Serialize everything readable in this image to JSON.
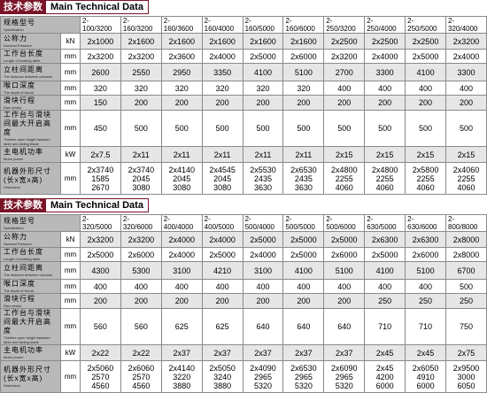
{
  "section1": {
    "title_cn": "技术参数",
    "title_en": "Main Technical Data",
    "rows": [
      {
        "cn": "规格型号",
        "en": "Specification",
        "unit": "",
        "values": [
          [
            "2-",
            "100/3200"
          ],
          [
            "2-",
            "160/3200"
          ],
          [
            "2-",
            "160/3600"
          ],
          [
            "2-",
            "160/4000"
          ],
          [
            "2-",
            "160/5000"
          ],
          [
            "2-",
            "160/6000"
          ],
          [
            "2-",
            "250/3200"
          ],
          [
            "2-",
            "250/4000"
          ],
          [
            "2-",
            "250/5000"
          ],
          [
            "2-",
            "320/4000"
          ]
        ]
      },
      {
        "cn": "公称力",
        "en": "Nominal Pressure",
        "unit": "kN",
        "values": [
          [
            "2x1000"
          ],
          [
            "2x1600"
          ],
          [
            "2x1600"
          ],
          [
            "2x1600"
          ],
          [
            "2x1600"
          ],
          [
            "2x1600"
          ],
          [
            "2x2500"
          ],
          [
            "2x2500"
          ],
          [
            "2x2500"
          ],
          [
            "2x3200"
          ]
        ]
      },
      {
        "cn": "工作台长度",
        "en": "Length of working table",
        "unit": "mm",
        "values": [
          [
            "2x3200"
          ],
          [
            "2x3200"
          ],
          [
            "2x3600"
          ],
          [
            "2x4000"
          ],
          [
            "2x5000"
          ],
          [
            "2x6000"
          ],
          [
            "2x3200"
          ],
          [
            "2x4000"
          ],
          [
            "2x5000"
          ],
          [
            "2x4000"
          ]
        ]
      },
      {
        "cn": "立柱间距离",
        "en": "The distance between columns",
        "unit": "mm",
        "values": [
          [
            "2600"
          ],
          [
            "2550"
          ],
          [
            "2950"
          ],
          [
            "3350"
          ],
          [
            "4100"
          ],
          [
            "5100"
          ],
          [
            "2700"
          ],
          [
            "3300"
          ],
          [
            "4100"
          ],
          [
            "3300"
          ]
        ]
      },
      {
        "cn": "喉口深度",
        "en": "The depth of throat",
        "unit": "mm",
        "values": [
          [
            "320"
          ],
          [
            "320"
          ],
          [
            "320"
          ],
          [
            "320"
          ],
          [
            "320"
          ],
          [
            "320"
          ],
          [
            "400"
          ],
          [
            "400"
          ],
          [
            "400"
          ],
          [
            "400"
          ]
        ]
      },
      {
        "cn": "滑块行程",
        "en": "Ram stroke",
        "unit": "mm",
        "values": [
          [
            "150"
          ],
          [
            "200"
          ],
          [
            "200"
          ],
          [
            "200"
          ],
          [
            "200"
          ],
          [
            "200"
          ],
          [
            "200"
          ],
          [
            "200"
          ],
          [
            "200"
          ],
          [
            "200"
          ]
        ]
      },
      {
        "cn": "工作台与滑块间最大开启高度",
        "en": "Thebtes open height between table and sliding blade",
        "unit": "mm",
        "values": [
          [
            "450"
          ],
          [
            "500"
          ],
          [
            "500"
          ],
          [
            "500"
          ],
          [
            "500"
          ],
          [
            "500"
          ],
          [
            "500"
          ],
          [
            "500"
          ],
          [
            "500"
          ],
          [
            "500"
          ]
        ]
      },
      {
        "cn": "主电机功率",
        "en": "Motor power",
        "unit": "kW",
        "values": [
          [
            "2x7.5"
          ],
          [
            "2x11"
          ],
          [
            "2x11"
          ],
          [
            "2x11"
          ],
          [
            "2x11"
          ],
          [
            "2x11"
          ],
          [
            "2x15"
          ],
          [
            "2x15"
          ],
          [
            "2x15"
          ],
          [
            "2x15"
          ]
        ]
      },
      {
        "cn": "机器外形尺寸(长x宽x高)",
        "en": "Dimension",
        "unit": "mm",
        "values": [
          [
            "2x3740",
            "1585",
            "2670"
          ],
          [
            "2x3740",
            "2045",
            "3080"
          ],
          [
            "2x4140",
            "2045",
            "3080"
          ],
          [
            "2x4545",
            "2045",
            "3080"
          ],
          [
            "2x5530",
            "2435",
            "3630"
          ],
          [
            "2x6530",
            "2435",
            "3630"
          ],
          [
            "2x4800",
            "2255",
            "4060"
          ],
          [
            "2x4800",
            "2255",
            "4060"
          ],
          [
            "2x5800",
            "2255",
            "4060"
          ],
          [
            "2x4060",
            "2255",
            "4060"
          ]
        ]
      }
    ]
  },
  "section2": {
    "title_cn": "技术参数",
    "title_en": "Main Technical Data",
    "rows": [
      {
        "cn": "规格型号",
        "en": "Specification",
        "unit": "",
        "values": [
          [
            "2-",
            "320/5000"
          ],
          [
            "2-",
            "320/6000"
          ],
          [
            "2-",
            "400/4000"
          ],
          [
            "2-",
            "400/5000"
          ],
          [
            "2-",
            "500/4000"
          ],
          [
            "2-",
            "500/5000"
          ],
          [
            "2-",
            "500/6000"
          ],
          [
            "2-",
            "630/5000"
          ],
          [
            "2-",
            "630/6000"
          ],
          [
            "2-",
            "800/8000"
          ]
        ]
      },
      {
        "cn": "公称力",
        "en": "Nominal Pressure",
        "unit": "kN",
        "values": [
          [
            "2x3200"
          ],
          [
            "2x3200"
          ],
          [
            "2x4000"
          ],
          [
            "2x4000"
          ],
          [
            "2x5000"
          ],
          [
            "2x5000"
          ],
          [
            "2x5000"
          ],
          [
            "2x6300"
          ],
          [
            "2x6300"
          ],
          [
            "2x8000"
          ]
        ]
      },
      {
        "cn": "工作台长度",
        "en": "Length of working table",
        "unit": "mm",
        "values": [
          [
            "2x5000"
          ],
          [
            "2x6000"
          ],
          [
            "2x4000"
          ],
          [
            "2x5000"
          ],
          [
            "2x4000"
          ],
          [
            "2x5000"
          ],
          [
            "2x6000"
          ],
          [
            "2x5000"
          ],
          [
            "2x6000"
          ],
          [
            "2x8000"
          ]
        ]
      },
      {
        "cn": "立柱间距离",
        "en": "The distance between columns",
        "unit": "mm",
        "values": [
          [
            "4300"
          ],
          [
            "5300"
          ],
          [
            "3100"
          ],
          [
            "4210"
          ],
          [
            "3100"
          ],
          [
            "4100"
          ],
          [
            "5100"
          ],
          [
            "4100"
          ],
          [
            "5100"
          ],
          [
            "6700"
          ]
        ]
      },
      {
        "cn": "喉口深度",
        "en": "The depth of throat",
        "unit": "mm",
        "values": [
          [
            "400"
          ],
          [
            "400"
          ],
          [
            "400"
          ],
          [
            "400"
          ],
          [
            "400"
          ],
          [
            "400"
          ],
          [
            "400"
          ],
          [
            "400"
          ],
          [
            "400"
          ],
          [
            "500"
          ]
        ]
      },
      {
        "cn": "滑块行程",
        "en": "Ram stroke",
        "unit": "mm",
        "values": [
          [
            "200"
          ],
          [
            "200"
          ],
          [
            "200"
          ],
          [
            "200"
          ],
          [
            "200"
          ],
          [
            "200"
          ],
          [
            "200"
          ],
          [
            "250"
          ],
          [
            "250"
          ],
          [
            "250"
          ]
        ]
      },
      {
        "cn": "工作台与滑块间最大开启高度",
        "en": "Thebtes open height between table and sliding blade",
        "unit": "mm",
        "values": [
          [
            "560"
          ],
          [
            "560"
          ],
          [
            "625"
          ],
          [
            "625"
          ],
          [
            "640"
          ],
          [
            "640"
          ],
          [
            "640"
          ],
          [
            "710"
          ],
          [
            "710"
          ],
          [
            "750"
          ]
        ]
      },
      {
        "cn": "主电机功率",
        "en": "Motor power",
        "unit": "kW",
        "values": [
          [
            "2x22"
          ],
          [
            "2x22"
          ],
          [
            "2x37"
          ],
          [
            "2x37"
          ],
          [
            "2x37"
          ],
          [
            "2x37"
          ],
          [
            "2x37"
          ],
          [
            "2x45"
          ],
          [
            "2x45"
          ],
          [
            "2x75"
          ]
        ]
      },
      {
        "cn": "机器外形尺寸(长x宽x高)",
        "en": "Dimension",
        "unit": "mm",
        "values": [
          [
            "2x5060",
            "2570",
            "4560"
          ],
          [
            "2x6060",
            "2570",
            "4560"
          ],
          [
            "2x4140",
            "3220",
            "3880"
          ],
          [
            "2x5050",
            "3240",
            "3880"
          ],
          [
            "2x4090",
            "2965",
            "5320"
          ],
          [
            "2x6530",
            "2965",
            "5320"
          ],
          [
            "2x6090",
            "2965",
            "5320"
          ],
          [
            "2x45",
            "4200",
            "6000"
          ],
          [
            "2x6050",
            "4910",
            "6000"
          ],
          [
            "2x9500",
            "3000",
            "6050"
          ]
        ]
      }
    ]
  }
}
